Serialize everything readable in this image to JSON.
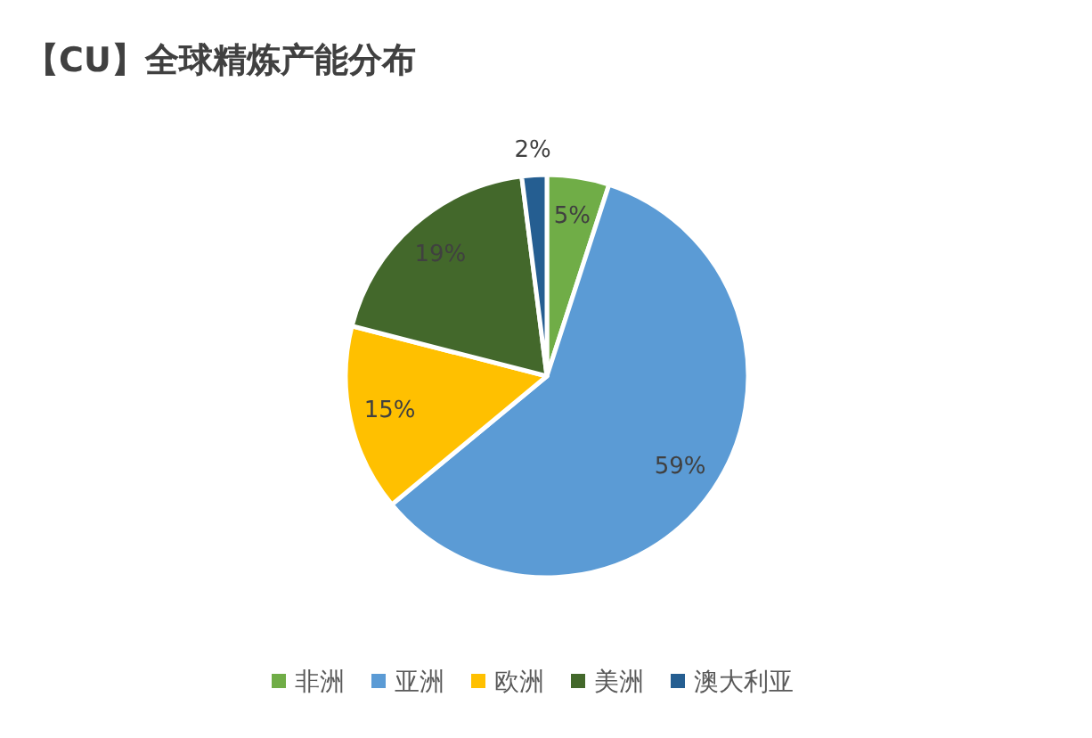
{
  "chart_data": {
    "type": "pie",
    "title": "【CU】全球精炼产能分布",
    "categories": [
      "非洲",
      "亚洲",
      "欧洲",
      "美洲",
      "澳大利亚"
    ],
    "values": [
      5,
      59,
      15,
      19,
      2
    ],
    "colors": [
      "#70ad47",
      "#5b9bd5",
      "#ffc000",
      "#43682b",
      "#255e91"
    ],
    "value_labels": [
      "5%",
      "59%",
      "15%",
      "19%",
      "2%"
    ],
    "legend": "bottom"
  }
}
